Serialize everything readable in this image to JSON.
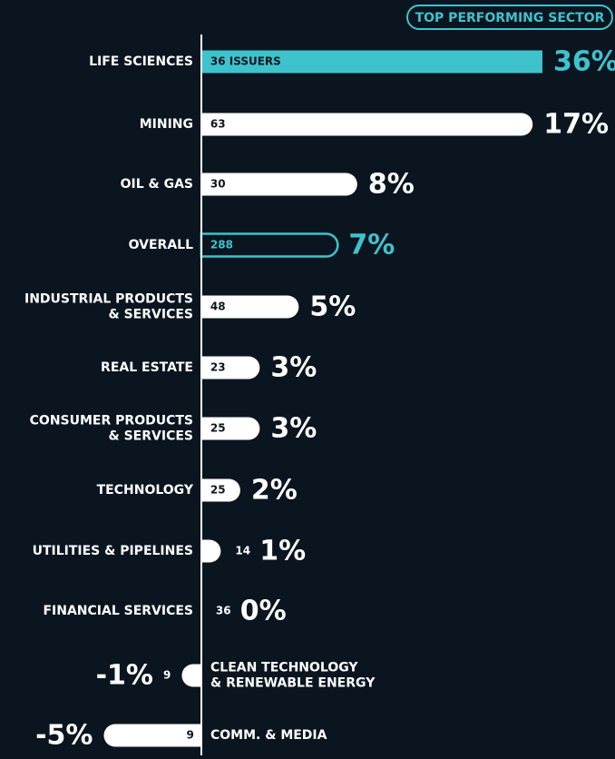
{
  "chart_data": {
    "type": "bar",
    "orientation": "horizontal",
    "badge": "TOP PERFORMING SECTOR",
    "categories": [
      "LIFE SCIENCES",
      "MINING",
      "OIL & GAS",
      "OVERALL",
      "INDUSTRIAL PRODUCTS\n& SERVICES",
      "REAL ESTATE",
      "CONSUMER PRODUCTS\n& SERVICES",
      "TECHNOLOGY",
      "UTILITIES & PIPELINES",
      "FINANCIAL SERVICES",
      "CLEAN TECHNOLOGY\n& RENEWABLE ENERGY",
      "COMM. & MEDIA"
    ],
    "values": [
      36,
      17,
      8,
      7,
      5,
      3,
      3,
      2,
      1,
      0,
      -1,
      -5
    ],
    "value_labels": [
      "36%",
      "17%",
      "8%",
      "7%",
      "5%",
      "3%",
      "3%",
      "2%",
      "1%",
      "0%",
      "-1%",
      "-5%"
    ],
    "issuers": [
      {
        "value": 36,
        "label": "36 ISSUERS"
      },
      63,
      30,
      288,
      48,
      23,
      25,
      25,
      14,
      36,
      9,
      9
    ],
    "bar_colors": [
      "#3ec3cc",
      "#ffffff",
      "#ffffff",
      "#3ec3cc",
      "#ffffff",
      "#ffffff",
      "#ffffff",
      "#ffffff",
      "#ffffff",
      "#ffffff",
      "#ffffff",
      "#ffffff"
    ],
    "outlined_bars": [
      3
    ],
    "xlim": [
      -10,
      17.5
    ]
  }
}
